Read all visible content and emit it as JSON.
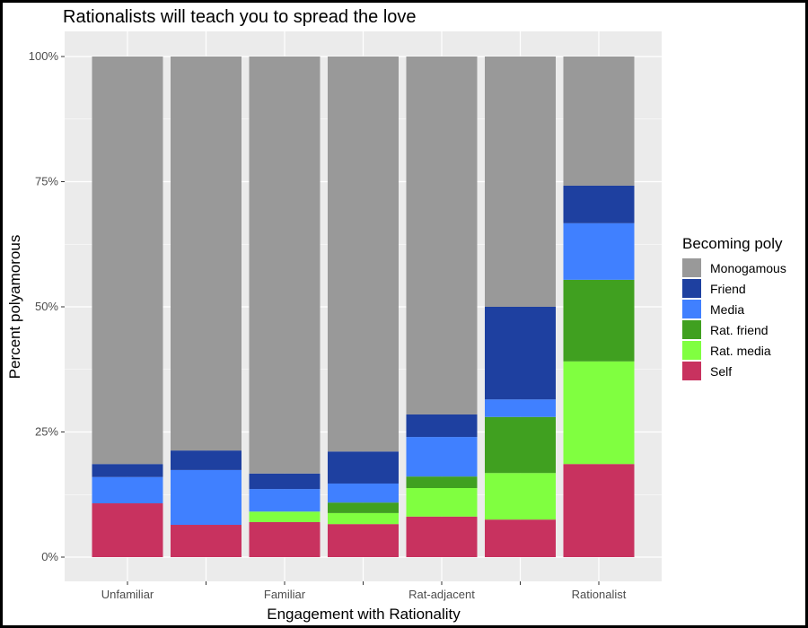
{
  "chart_data": {
    "type": "bar",
    "stacked": true,
    "title": "Rationalists will teach you to spread the love",
    "xlabel": "Engagement with Rationality",
    "ylabel": "Percent polyamorous",
    "ylim": [
      0,
      100
    ],
    "yticks": [
      "0%",
      "25%",
      "50%",
      "75%",
      "100%"
    ],
    "grid": true,
    "legend_placement": "right",
    "legend_title": "Becoming poly",
    "categories": [
      "Unfamiliar",
      "",
      "Familiar",
      "",
      "Rat-adjacent",
      "",
      "Rationalist"
    ],
    "series": [
      {
        "name": "Self",
        "color": "#C8325F",
        "values": [
          10.75,
          6.45,
          7.0,
          6.6,
          8.1,
          7.5,
          18.6
        ]
      },
      {
        "name": "Rat. media",
        "color": "#80FF40",
        "values": [
          0,
          0,
          2.1,
          2.2,
          5.7,
          9.3,
          20.5
        ]
      },
      {
        "name": "Rat. friend",
        "color": "#40A020",
        "values": [
          0,
          0,
          0,
          2.1,
          2.3,
          11.2,
          16.3
        ]
      },
      {
        "name": "Media",
        "color": "#4080FF",
        "values": [
          5.25,
          10.95,
          4.5,
          3.8,
          7.9,
          3.5,
          11.3
        ]
      },
      {
        "name": "Friend",
        "color": "#1E40A0",
        "values": [
          2.6,
          3.9,
          3.1,
          6.4,
          4.5,
          18.5,
          7.5
        ]
      },
      {
        "name": "Monogamous",
        "color": "#999999",
        "values": [
          81.4,
          78.7,
          83.3,
          78.9,
          71.5,
          50.0,
          25.8
        ]
      }
    ],
    "legend_order": [
      "Monogamous",
      "Friend",
      "Media",
      "Rat. friend",
      "Rat. media",
      "Self"
    ]
  }
}
